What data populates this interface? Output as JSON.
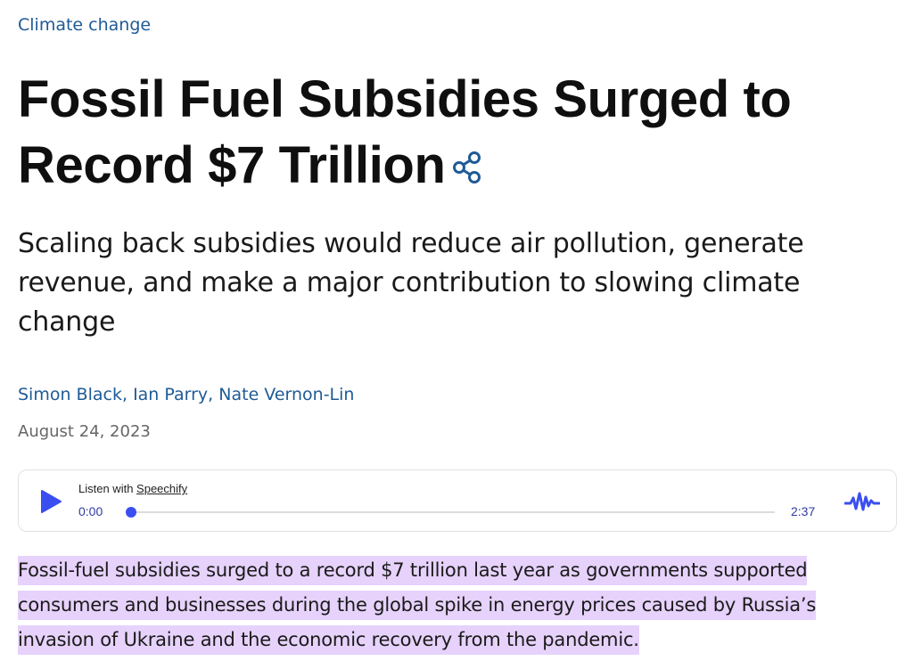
{
  "category": "Climate change",
  "headline": {
    "line1": "Fossil Fuel Subsidies Surged to",
    "line2": "Record $7 Trillion"
  },
  "share_icon": "share-icon",
  "dek": "Scaling back subsidies would reduce air pollution, generate revenue, and make a major contribution to slowing climate change",
  "authors": [
    {
      "name": "Simon Black"
    },
    {
      "name": "Ian Parry"
    },
    {
      "name": "Nate Vernon-Lin"
    }
  ],
  "author_separator": ", ",
  "date": "August 24, 2023",
  "player": {
    "listen_prefix": "Listen with ",
    "brand": "Speechify",
    "time_current": "0:00",
    "time_total": "2:37",
    "progress": 0.0,
    "play_icon": "play-icon",
    "logo_icon": "speechify-wave-icon",
    "accent_color": "#3b4ef0"
  },
  "lead_paragraph": "Fossil-fuel subsidies surged to a record $7 trillion last year as governments supported consumers and businesses during the global spike in energy prices caused by Russia’s invasion of Ukraine and the economic recovery from the pandemic.",
  "colors": {
    "link": "#1f5a96",
    "highlight": "#e6d2fb",
    "muted": "#666666"
  }
}
